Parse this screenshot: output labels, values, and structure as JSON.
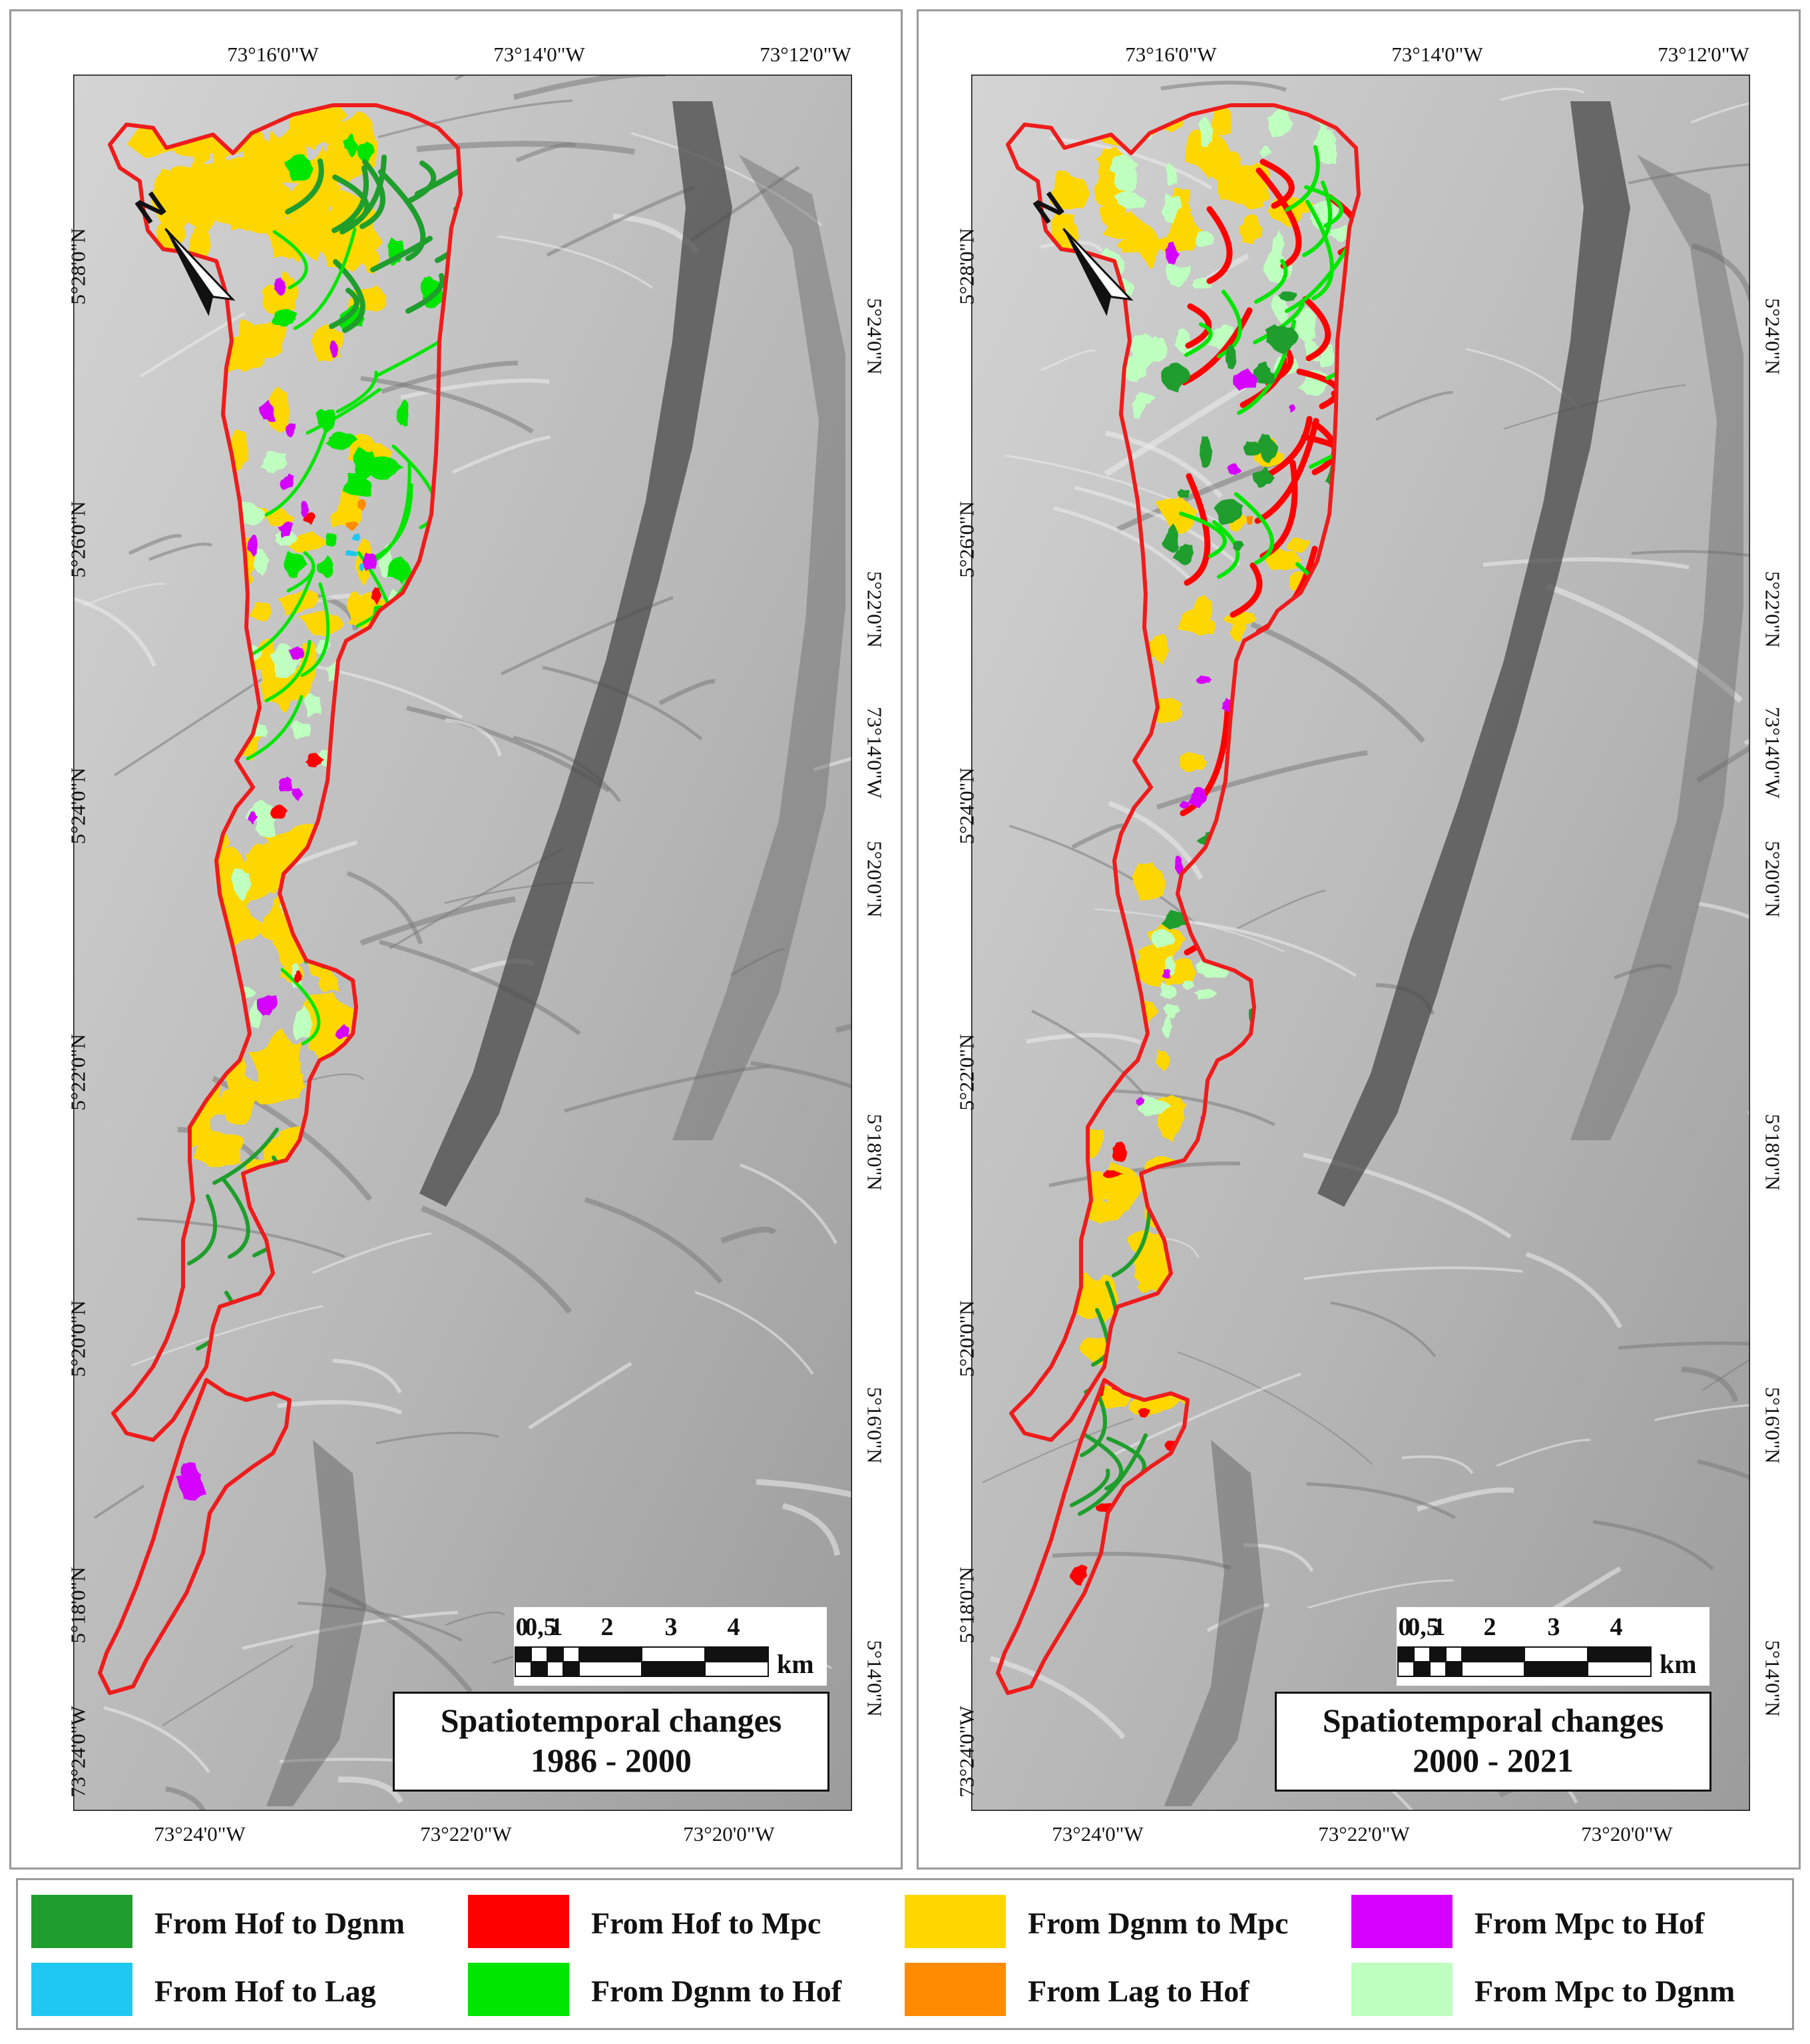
{
  "panels": [
    {
      "title_line1": "Spatiotemporal changes",
      "title_line2": "1986 - 2000",
      "top_labels": [
        "73°16'0\"W",
        "73°14'0\"W",
        "73°12'0\"W"
      ],
      "bottom_labels": [
        "73°24'0\"W",
        "73°22'0\"W",
        "73°20'0\"W"
      ],
      "left_labels": [
        "5°28'0\"N",
        "5°26'0\"N",
        "5°24'0\"N",
        "5°22'0\"N",
        "5°20'0\"N",
        "5°18'0\"N",
        "73°24'0\"W"
      ],
      "right_labels": [
        "5°24'0\"N",
        "5°22'0\"N",
        "73°14'0\"W",
        "5°20'0\"N",
        "5°18'0\"N",
        "5°16'0\"N",
        "5°14'0\"N"
      ],
      "north_label": "N",
      "scale": {
        "ticks": [
          "0",
          "0,5",
          "1",
          "2",
          "3",
          "4"
        ],
        "unit": "km"
      }
    },
    {
      "title_line1": "Spatiotemporal changes",
      "title_line2": "2000 - 2021",
      "top_labels": [
        "73°16'0\"W",
        "73°14'0\"W",
        "73°12'0\"W"
      ],
      "bottom_labels": [
        "73°24'0\"W",
        "73°22'0\"W",
        "73°20'0\"W"
      ],
      "left_labels": [
        "5°28'0\"N",
        "5°26'0\"N",
        "5°24'0\"N",
        "5°22'0\"N",
        "5°20'0\"N",
        "5°18'0\"N",
        "73°24'0\"W"
      ],
      "right_labels": [
        "5°24'0\"N",
        "5°22'0\"N",
        "73°14'0\"W",
        "5°20'0\"N",
        "5°18'0\"N",
        "5°16'0\"N",
        "5°14'0\"N"
      ],
      "north_label": "N",
      "scale": {
        "ticks": [
          "0",
          "0,5",
          "1",
          "2",
          "3",
          "4"
        ],
        "unit": "km"
      }
    }
  ],
  "colors": {
    "boundary": "#ee1c1c",
    "hillshade_light": "#d4d4d4",
    "hillshade_dark": "#4a4a4a"
  },
  "legend": [
    {
      "label": "From Hof to Dgnm",
      "color": "#1f9e2d"
    },
    {
      "label": "From Hof to Mpc",
      "color": "#ff0000"
    },
    {
      "label": "From Dgnm to Mpc",
      "color": "#ffd700"
    },
    {
      "label": "From Mpc to Hof",
      "color": "#d600ff"
    },
    {
      "label": "From Hof to Lag",
      "color": "#1ec8f0"
    },
    {
      "label": "From Dgnm to Hof",
      "color": "#00e600"
    },
    {
      "label": "From Lag to Hof",
      "color": "#ff8c00"
    },
    {
      "label": "From Mpc to Dgnm",
      "color": "#bfffbf"
    }
  ]
}
